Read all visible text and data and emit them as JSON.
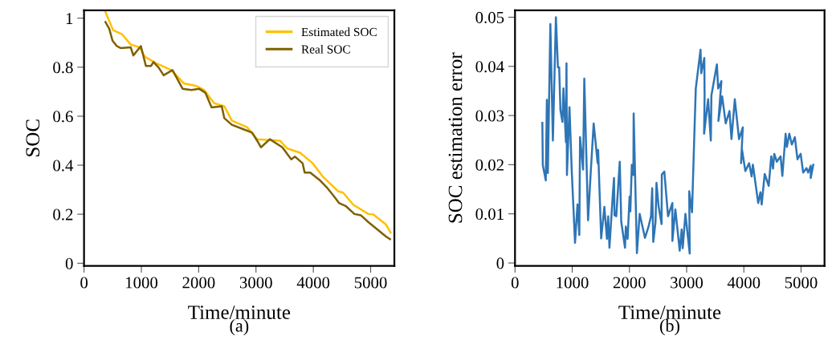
{
  "chart_data": [
    {
      "type": "line",
      "xlabel": "Time/minute",
      "ylabel": "SOC",
      "annotations": [
        "(a)"
      ],
      "legend": "top right",
      "grid": false,
      "marker": "none",
      "line_style": "solid",
      "xlim": [
        0,
        5414
      ],
      "xticks": [
        0,
        1000,
        2000,
        3000,
        4000,
        5000
      ],
      "ylim": [
        -0.011,
        1.032
      ],
      "yticks": [
        0,
        0.2,
        0.4,
        0.6,
        0.8,
        1
      ],
      "series": [
        {
          "name": "Estimated SOC",
          "color": "#ffc000",
          "x": [
            374,
            507,
            661,
            815,
            970,
            1058,
            1257,
            1521,
            1741,
            1962,
            2094,
            2270,
            2447,
            2579,
            2844,
            3020,
            3417,
            3549,
            3770,
            3989,
            4167,
            4431,
            4519,
            4696,
            4960,
            5048,
            5268,
            5348
          ],
          "values": [
            1.025,
            0.951,
            0.935,
            0.892,
            0.881,
            0.843,
            0.816,
            0.788,
            0.734,
            0.723,
            0.707,
            0.653,
            0.641,
            0.582,
            0.555,
            0.506,
            0.5,
            0.468,
            0.451,
            0.408,
            0.353,
            0.294,
            0.288,
            0.239,
            0.201,
            0.199,
            0.158,
            0.125
          ]
        },
        {
          "name": "Real SOC",
          "color": "#7f6000",
          "x": [
            374,
            440,
            497,
            573,
            639,
            815,
            860,
            992,
            1079,
            1168,
            1212,
            1300,
            1389,
            1543,
            1720,
            1873,
            2005,
            2116,
            2226,
            2402,
            2447,
            2579,
            2755,
            2931,
            3020,
            3086,
            3241,
            3460,
            3615,
            3681,
            3813,
            3849,
            3946,
            4122,
            4233,
            4365,
            4452,
            4563,
            4717,
            4828,
            4960,
            5268,
            5339
          ],
          "values": [
            0.984,
            0.957,
            0.908,
            0.886,
            0.878,
            0.881,
            0.848,
            0.886,
            0.805,
            0.805,
            0.821,
            0.799,
            0.767,
            0.788,
            0.712,
            0.707,
            0.712,
            0.696,
            0.636,
            0.641,
            0.592,
            0.565,
            0.549,
            0.533,
            0.5,
            0.473,
            0.506,
            0.473,
            0.424,
            0.435,
            0.408,
            0.37,
            0.37,
            0.337,
            0.31,
            0.272,
            0.245,
            0.234,
            0.201,
            0.196,
            0.168,
            0.109,
            0.098
          ]
        }
      ]
    },
    {
      "type": "line",
      "xlabel": "Time/minute",
      "ylabel": "SOC estimation error",
      "annotations": [
        "(b)"
      ],
      "grid": false,
      "marker": "none",
      "line_style": "solid",
      "xlim": [
        0,
        5410
      ],
      "xticks": [
        0,
        1000,
        2000,
        3000,
        4000,
        5000
      ],
      "ylim": [
        -0.0006,
        0.0514
      ],
      "yticks": [
        0,
        0.01,
        0.02,
        0.03,
        0.04,
        0.05
      ],
      "series": [
        {
          "color": "#2e75b6",
          "x": [
            478,
            486,
            538,
            557,
            574,
            618,
            662,
            715,
            750,
            772,
            794,
            829,
            847,
            890,
            900,
            908,
            952,
            992,
            1049,
            1092,
            1124,
            1137,
            1190,
            1211,
            1277,
            1322,
            1375,
            1445,
            1453,
            1506,
            1562,
            1607,
            1629,
            1651,
            1708,
            1731,
            1739,
            1770,
            1831,
            1857,
            1923,
            1937,
            1968,
            2003,
            2016,
            2042,
            2069,
            2074,
            2131,
            2179,
            2272,
            2332,
            2377,
            2398,
            2417,
            2456,
            2473,
            2509,
            2562,
            2566,
            2610,
            2675,
            2751,
            2751,
            2803,
            2879,
            2913,
            2931,
            2979,
            3054,
            3045,
            3094,
            3133,
            3160,
            3243,
            3256,
            3309,
            3314,
            3305,
            3375,
            3423,
            3433,
            3529,
            3551,
            3608,
            3555,
            3621,
            3683,
            3749,
            3784,
            3842,
            3916,
            3982,
            3951,
            3969,
            4026,
            4092,
            4136,
            4158,
            4251,
            4290,
            4312,
            4364,
            4435,
            4479,
            4510,
            4532,
            4576,
            4642,
            4673,
            4730,
            4752,
            4795,
            4839,
            4892,
            4937,
            4993,
            5037,
            5095,
            5125,
            5169,
            5169,
            5214
          ],
          "values": [
            0.0285,
            0.0199,
            0.0168,
            0.0332,
            0.0183,
            0.0486,
            0.0249,
            0.05,
            0.0398,
            0.0398,
            0.0311,
            0.0287,
            0.0355,
            0.0246,
            0.0406,
            0.0179,
            0.0317,
            0.0187,
            0.0041,
            0.0119,
            0.0057,
            0.0256,
            0.019,
            0.0375,
            0.0087,
            0.0181,
            0.0284,
            0.0203,
            0.023,
            0.005,
            0.0114,
            0.0049,
            0.0095,
            0.0031,
            0.0137,
            0.0173,
            0.0097,
            0.0095,
            0.0206,
            0.0084,
            0.0031,
            0.0074,
            0.0049,
            0.0135,
            0.0105,
            0.02,
            0.0179,
            0.0304,
            0.002,
            0.01,
            0.0051,
            0.0073,
            0.0095,
            0.0152,
            0.0043,
            0.0083,
            0.0163,
            0.0116,
            0.0079,
            0.018,
            0.0186,
            0.0095,
            0.0122,
            0.0045,
            0.0109,
            0.0025,
            0.0068,
            0.003,
            0.01,
            0.0019,
            0.0146,
            0.0103,
            0.0255,
            0.0355,
            0.0434,
            0.0386,
            0.0417,
            0.0339,
            0.0263,
            0.0333,
            0.0249,
            0.0341,
            0.0404,
            0.0355,
            0.037,
            0.0289,
            0.0339,
            0.0284,
            0.0309,
            0.0252,
            0.0333,
            0.0252,
            0.0276,
            0.0203,
            0.023,
            0.0187,
            0.0203,
            0.0176,
            0.02,
            0.0122,
            0.0144,
            0.0119,
            0.0181,
            0.0157,
            0.0217,
            0.0192,
            0.0222,
            0.0206,
            0.0217,
            0.0177,
            0.0263,
            0.0236,
            0.0263,
            0.0241,
            0.0256,
            0.0211,
            0.0222,
            0.0184,
            0.0193,
            0.0184,
            0.0198,
            0.0173,
            0.02
          ]
        }
      ]
    }
  ]
}
